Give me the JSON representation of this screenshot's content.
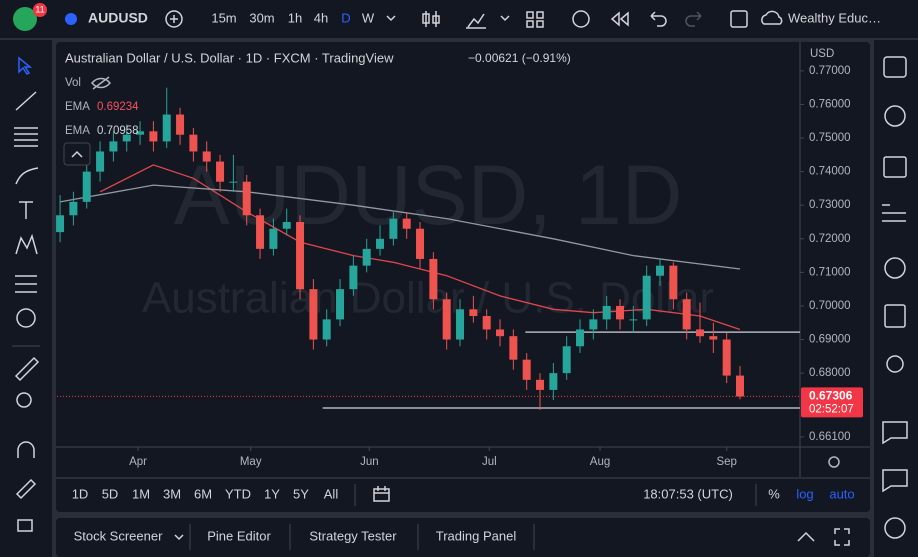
{
  "toolbar": {
    "badge": "11",
    "symbol": "AUDUSD",
    "intervals": [
      "15m",
      "30m",
      "1h",
      "4h",
      "D",
      "W"
    ],
    "account": "Wealthy Educ…"
  },
  "legend": {
    "title": "Australian Dollar / U.S. Dollar · 1D · FXCM · TradingView",
    "change": "−0.00621 (−0.91%)",
    "vol": "Vol",
    "ema1_name": "EMA",
    "ema1_value": "0.69234",
    "ema2_name": "EMA",
    "ema2_value": "0.70958"
  },
  "watermark": {
    "symbol": "AUDUSD, 1D",
    "name": "Australian Dollar / U.S. Dollar"
  },
  "currency": "USD",
  "countdown": "02:52:07",
  "range_bar": {
    "ranges": [
      "1D",
      "5D",
      "1M",
      "3M",
      "6M",
      "YTD",
      "1Y",
      "5Y",
      "All"
    ],
    "time": "18:07:53 (UTC)",
    "percent": "%",
    "log": "log",
    "auto": "auto"
  },
  "tabs": [
    "Stock Screener",
    "Pine Editor",
    "Strategy Tester",
    "Trading Panel"
  ],
  "chart_data": {
    "type": "candlestick",
    "up_color": "#26a69a",
    "down_color": "#ef5350",
    "xlim": [
      -0.23,
      55.5
    ],
    "ylim": [
      0.658,
      0.7786
    ],
    "xticks": [
      {
        "value": 5.85,
        "label": "Apr"
      },
      {
        "value": 14.3,
        "label": "May"
      },
      {
        "value": 23.2,
        "label": "Jun"
      },
      {
        "value": 32.2,
        "label": "Jul"
      },
      {
        "value": 40.5,
        "label": "Aug"
      },
      {
        "value": 50,
        "label": "Sep"
      }
    ],
    "yticks": [
      {
        "value": 0.77,
        "label": "0.77000"
      },
      {
        "value": 0.76,
        "label": "0.76000"
      },
      {
        "value": 0.75,
        "label": "0.75000"
      },
      {
        "value": 0.74,
        "label": "0.74000"
      },
      {
        "value": 0.73,
        "label": "0.73000"
      },
      {
        "value": 0.72,
        "label": "0.72000"
      },
      {
        "value": 0.71,
        "label": "0.71000"
      },
      {
        "value": 0.7,
        "label": "0.70000"
      },
      {
        "value": 0.69,
        "label": "0.69000"
      },
      {
        "value": 0.68,
        "label": "0.68000"
      },
      {
        "value": 0.661,
        "label": "0.66100"
      }
    ],
    "candles": [
      [
        0.722,
        0.733,
        0.719,
        0.727
      ],
      [
        0.727,
        0.734,
        0.724,
        0.731
      ],
      [
        0.731,
        0.743,
        0.729,
        0.74
      ],
      [
        0.74,
        0.749,
        0.737,
        0.746
      ],
      [
        0.746,
        0.752,
        0.743,
        0.749
      ],
      [
        0.749,
        0.754,
        0.746,
        0.751
      ],
      [
        0.751,
        0.755,
        0.748,
        0.752
      ],
      [
        0.752,
        0.755,
        0.746,
        0.749
      ],
      [
        0.749,
        0.765,
        0.747,
        0.757
      ],
      [
        0.757,
        0.759,
        0.748,
        0.751
      ],
      [
        0.751,
        0.753,
        0.743,
        0.746
      ],
      [
        0.746,
        0.749,
        0.74,
        0.743
      ],
      [
        0.743,
        0.745,
        0.734,
        0.737
      ],
      [
        0.737,
        0.745,
        0.734,
        0.737
      ],
      [
        0.737,
        0.739,
        0.724,
        0.727
      ],
      [
        0.727,
        0.729,
        0.714,
        0.717
      ],
      [
        0.717,
        0.726,
        0.715,
        0.723
      ],
      [
        0.723,
        0.729,
        0.721,
        0.725
      ],
      [
        0.725,
        0.727,
        0.702,
        0.705
      ],
      [
        0.705,
        0.708,
        0.687,
        0.69
      ],
      [
        0.69,
        0.699,
        0.688,
        0.696
      ],
      [
        0.696,
        0.708,
        0.694,
        0.705
      ],
      [
        0.705,
        0.715,
        0.703,
        0.712
      ],
      [
        0.712,
        0.72,
        0.71,
        0.717
      ],
      [
        0.717,
        0.724,
        0.715,
        0.72
      ],
      [
        0.72,
        0.728,
        0.718,
        0.726
      ],
      [
        0.726,
        0.728,
        0.72,
        0.723
      ],
      [
        0.723,
        0.725,
        0.711,
        0.714
      ],
      [
        0.714,
        0.716,
        0.699,
        0.702
      ],
      [
        0.702,
        0.704,
        0.687,
        0.69
      ],
      [
        0.69,
        0.702,
        0.688,
        0.699
      ],
      [
        0.699,
        0.703,
        0.695,
        0.697
      ],
      [
        0.697,
        0.699,
        0.69,
        0.693
      ],
      [
        0.693,
        0.696,
        0.688,
        0.691
      ],
      [
        0.691,
        0.693,
        0.681,
        0.684
      ],
      [
        0.684,
        0.686,
        0.675,
        0.678
      ],
      [
        0.678,
        0.68,
        0.669,
        0.675
      ],
      [
        0.675,
        0.683,
        0.672,
        0.68
      ],
      [
        0.68,
        0.691,
        0.678,
        0.688
      ],
      [
        0.688,
        0.696,
        0.686,
        0.693
      ],
      [
        0.693,
        0.699,
        0.69,
        0.696
      ],
      [
        0.696,
        0.703,
        0.693,
        0.7
      ],
      [
        0.7,
        0.702,
        0.693,
        0.696
      ],
      [
        0.696,
        0.7,
        0.692,
        0.696
      ],
      [
        0.696,
        0.712,
        0.694,
        0.709
      ],
      [
        0.709,
        0.714,
        0.706,
        0.712
      ],
      [
        0.712,
        0.713,
        0.699,
        0.702
      ],
      [
        0.702,
        0.704,
        0.69,
        0.693
      ],
      [
        0.693,
        0.701,
        0.689,
        0.691
      ],
      [
        0.691,
        0.695,
        0.686,
        0.69
      ],
      [
        0.69,
        0.692,
        0.677,
        0.67927
      ],
      [
        0.67927,
        0.6821,
        0.6722,
        0.67306
      ]
    ],
    "series": [
      {
        "color": "#e0474c",
        "x": [
          3,
          7,
          10,
          14,
          18,
          22,
          25,
          29,
          33,
          37,
          40,
          44,
          48,
          51
        ],
        "values": [
          0.734,
          0.742,
          0.738,
          0.728,
          0.719,
          0.715,
          0.713,
          0.709,
          0.703,
          0.699,
          0.698,
          0.699,
          0.697,
          0.693
        ]
      },
      {
        "color": "#9598a1",
        "x": [
          0,
          7,
          14,
          22,
          29,
          37,
          43,
          51
        ],
        "values": [
          0.731,
          0.736,
          0.734,
          0.73,
          0.726,
          0.72,
          0.715,
          0.711
        ]
      }
    ],
    "horizontal_lines": [
      {
        "value": 0.6696,
        "from": 19.7
      },
      {
        "value": 0.6922,
        "from": 34.9
      }
    ],
    "price_color": "#f23645"
  }
}
